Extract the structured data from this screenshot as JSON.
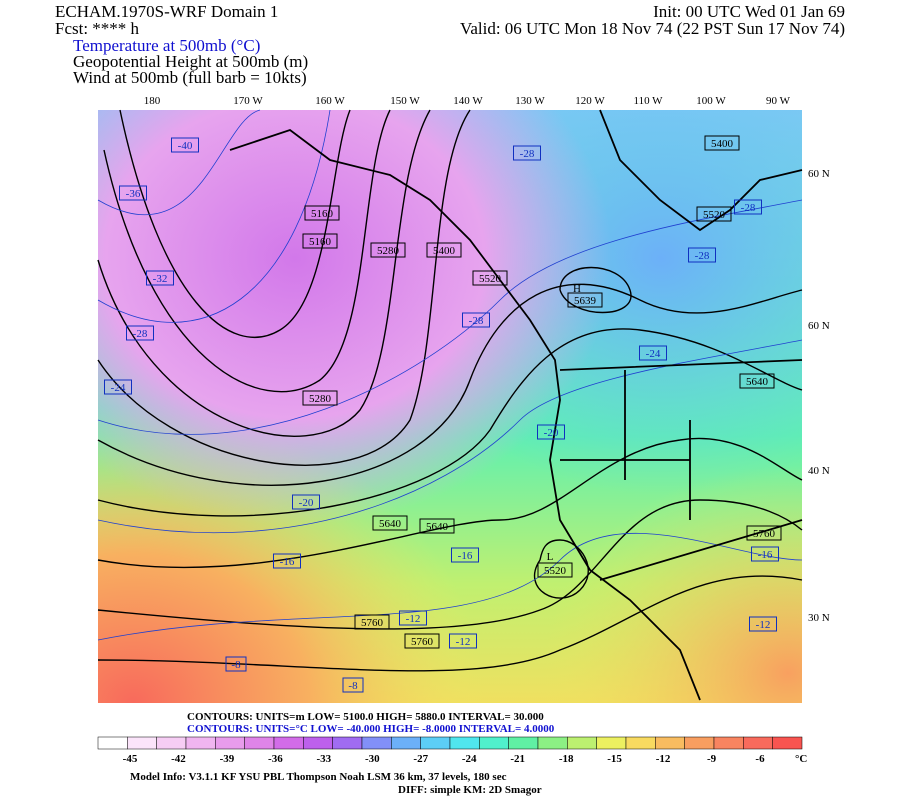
{
  "header": {
    "model": "ECHAM.1970S-WRF Domain 1",
    "init": "Init: 00 UTC Wed 01 Jan 69",
    "fcst": "Fcst: **** h",
    "valid": "Valid: 06 UTC Mon 18 Nov 74 (22 PST Sun 17 Nov 74)",
    "fields": [
      "Temperature at 500mb (°C)",
      "Geopotential Height at 500mb (m)",
      "Wind at 500mb (full barb = 10kts)"
    ]
  },
  "map": {
    "lon_labels": [
      "180",
      "170 W",
      "160 W",
      "150 W",
      "140 W",
      "130 W",
      "120 W",
      "110 W",
      "100 W",
      "90 W"
    ],
    "lat_labels": [
      "60 N",
      "60 N",
      "40 N",
      "30 N"
    ],
    "temp_labels": [
      "-40",
      "-36",
      "-32",
      "-28",
      "-24",
      "-20",
      "-16",
      "-8",
      "-8",
      "-28",
      "-28",
      "-28",
      "-28",
      "-24",
      "-20",
      "-16",
      "-12",
      "-12",
      "-16",
      "-12"
    ],
    "height_labels": [
      "5400",
      "5520",
      "5160",
      "5160",
      "5280",
      "5400",
      "5520",
      "5639",
      "5640",
      "5280",
      "5640",
      "5640",
      "5520",
      "5760",
      "5760",
      "5760"
    ],
    "markers": [
      "H",
      "L"
    ]
  },
  "footer": {
    "contours_height": "CONTOURS:  UNITS=m  LOW=   5100.0       HIGH=  5880.0       INTERVAL=    30.000",
    "contours_temp": "CONTOURS:  UNITS=°C  LOW=  -40.000       HIGH=  -8.0000      INTERVAL=    4.0000",
    "colorbar": {
      "colors": [
        "#ffffff",
        "#fbe4fa",
        "#f6cdf4",
        "#f0b5f0",
        "#e89cec",
        "#df84e8",
        "#d26ce8",
        "#bd60ec",
        "#a06cf2",
        "#8290f8",
        "#6cb0f8",
        "#5ccef6",
        "#50e6ee",
        "#50f0cc",
        "#60f0a4",
        "#8cf084",
        "#bcf070",
        "#ecf060",
        "#f8da60",
        "#f8bc60",
        "#f89e60",
        "#f88460",
        "#f86a5c",
        "#f85450"
      ],
      "labels": [
        "-45",
        "-42",
        "-39",
        "-36",
        "-33",
        "-30",
        "-27",
        "-24",
        "-21",
        "-18",
        "-15",
        "-12",
        "-9",
        "-6"
      ],
      "unit": "°C"
    },
    "info": "Model Info: V3.1.1    KF       YSU PBL   Thompson     Noah LSM  36 km,    37 levels,   180 sec",
    "diff": "DIFF: simple KM: 2D Smagor"
  }
}
